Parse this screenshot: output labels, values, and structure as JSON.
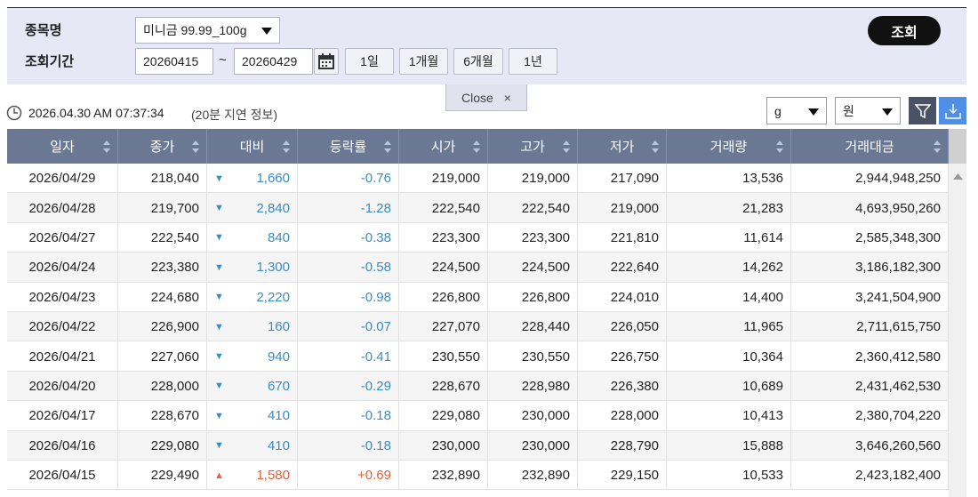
{
  "filter": {
    "item_label": "종목명",
    "item_select": "미니금 99.99_100g",
    "period_label": "조회기간",
    "start_date": "20260415",
    "tilde": "~",
    "end_date": "20260429",
    "range_buttons": [
      "1일",
      "1개월",
      "6개월",
      "1년"
    ],
    "search_button": "조회"
  },
  "close_tab": {
    "label": "Close",
    "icon": "×"
  },
  "info": {
    "timestamp": "2026.04.30 AM 07:37:34",
    "delay_note": "(20분 지연 정보)",
    "unit_select": "g",
    "currency_select": "원"
  },
  "table": {
    "columns": [
      "일자",
      "종가",
      "대비",
      "등락률",
      "시가",
      "고가",
      "저가",
      "거래량",
      "거래대금"
    ],
    "rows": [
      [
        "2026/04/29",
        "218,040",
        "▼",
        "1,660",
        "-0.76",
        "219,000",
        "219,000",
        "217,090",
        "13,536",
        "2,944,948,250"
      ],
      [
        "2026/04/28",
        "219,700",
        "▼",
        "2,840",
        "-1.28",
        "222,540",
        "222,540",
        "219,000",
        "21,283",
        "4,693,950,260"
      ],
      [
        "2026/04/27",
        "222,540",
        "▼",
        "840",
        "-0.38",
        "223,300",
        "223,300",
        "221,810",
        "11,614",
        "2,585,348,300"
      ],
      [
        "2026/04/24",
        "223,380",
        "▼",
        "1,300",
        "-0.58",
        "224,500",
        "224,500",
        "222,640",
        "14,262",
        "3,186,182,300"
      ],
      [
        "2026/04/23",
        "224,680",
        "▼",
        "2,220",
        "-0.98",
        "226,800",
        "226,800",
        "224,010",
        "14,400",
        "3,241,504,900"
      ],
      [
        "2026/04/22",
        "226,900",
        "▼",
        "160",
        "-0.07",
        "227,070",
        "228,440",
        "226,050",
        "11,965",
        "2,711,615,750"
      ],
      [
        "2026/04/21",
        "227,060",
        "▼",
        "940",
        "-0.41",
        "230,550",
        "230,550",
        "226,750",
        "10,364",
        "2,360,412,580"
      ],
      [
        "2026/04/20",
        "228,000",
        "▼",
        "670",
        "-0.29",
        "228,670",
        "228,980",
        "226,380",
        "10,689",
        "2,431,462,530"
      ],
      [
        "2026/04/17",
        "228,670",
        "▼",
        "410",
        "-0.18",
        "229,080",
        "230,000",
        "228,000",
        "10,413",
        "2,380,704,220"
      ],
      [
        "2026/04/16",
        "229,080",
        "▼",
        "410",
        "-0.18",
        "230,000",
        "230,000",
        "228,790",
        "15,888",
        "3,646,260,560"
      ],
      [
        "2026/04/15",
        "229,490",
        "▲",
        "1,580",
        "+0.69",
        "232,890",
        "232,890",
        "229,150",
        "10,533",
        "2,423,182,400"
      ]
    ]
  }
}
